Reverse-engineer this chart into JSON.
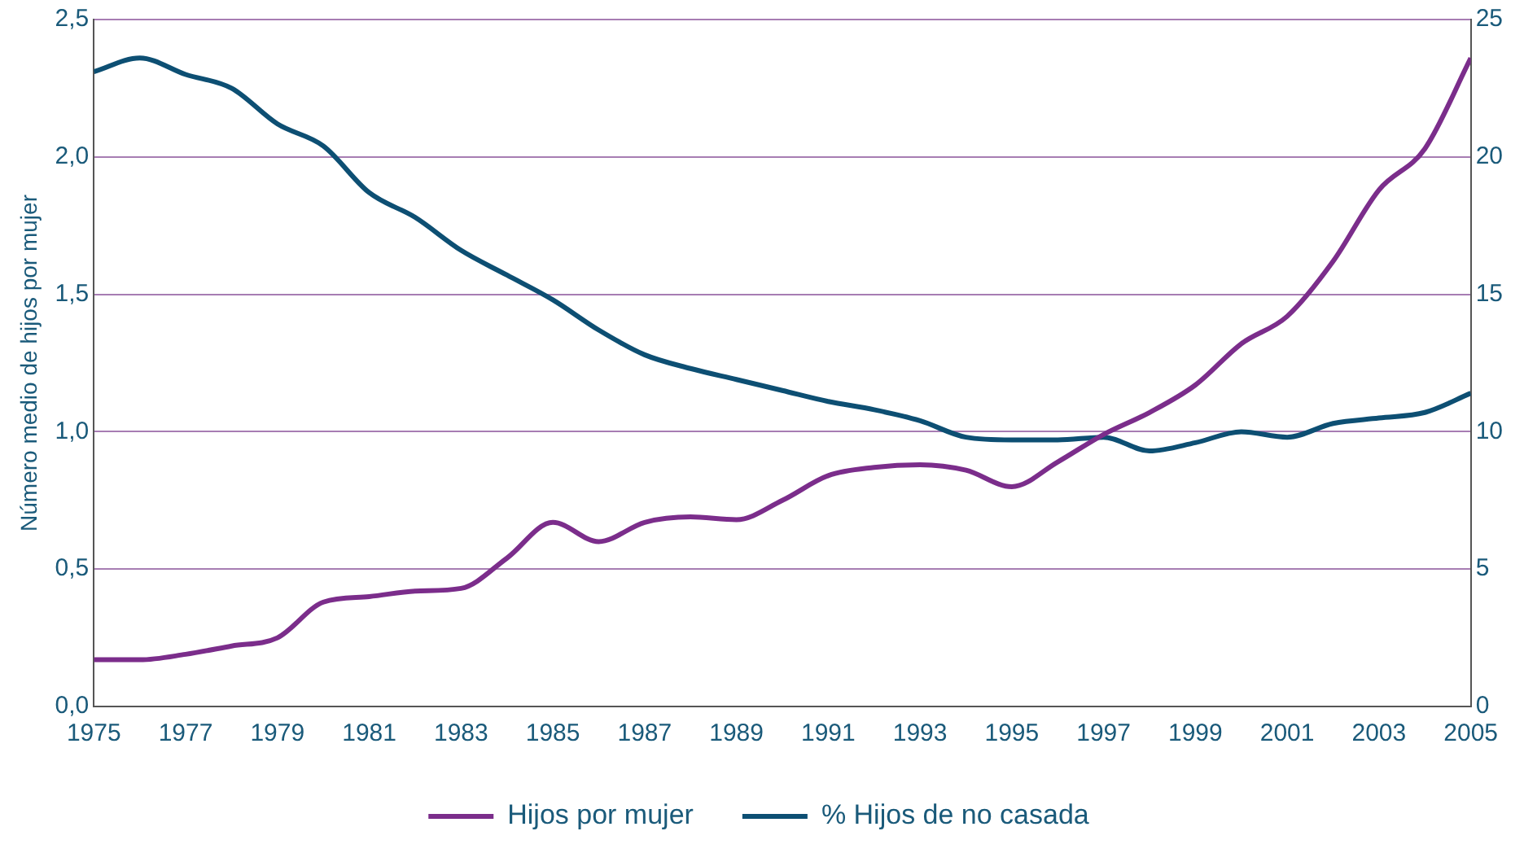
{
  "chart_data": {
    "type": "line",
    "ylabel": "Número medio de hijos por mujer",
    "x": [
      1975,
      1976,
      1977,
      1978,
      1979,
      1980,
      1981,
      1982,
      1983,
      1984,
      1985,
      1986,
      1987,
      1988,
      1989,
      1990,
      1991,
      1992,
      1993,
      1994,
      1995,
      1996,
      1997,
      1998,
      1999,
      2000,
      2001,
      2002,
      2003,
      2004,
      2005
    ],
    "series": [
      {
        "name": "Hijos por mujer",
        "color": "#7b2d8b",
        "values": [
          0.17,
          0.17,
          0.19,
          0.22,
          0.25,
          0.38,
          0.4,
          0.42,
          0.43,
          0.54,
          0.67,
          0.6,
          0.67,
          0.69,
          0.68,
          0.75,
          0.84,
          0.87,
          0.88,
          0.86,
          0.8,
          0.89,
          0.99,
          1.07,
          1.17,
          1.32,
          1.42,
          1.62,
          1.88,
          2.03,
          2.36
        ]
      },
      {
        "name": "% Hijos de no casada",
        "color": "#0d4f73",
        "axis": "y2",
        "values": [
          23.1,
          23.6,
          23.0,
          22.5,
          21.2,
          20.4,
          18.7,
          17.8,
          16.6,
          15.7,
          14.8,
          13.7,
          12.8,
          12.3,
          11.9,
          11.5,
          11.1,
          10.8,
          10.4,
          9.8,
          9.7,
          9.7,
          9.8,
          9.3,
          9.6,
          10.0,
          9.8,
          10.3,
          10.5,
          10.7,
          11.4
        ]
      }
    ],
    "xlim": [
      1975,
      2005
    ],
    "xticks": [
      1975,
      1977,
      1979,
      1981,
      1983,
      1985,
      1987,
      1989,
      1991,
      1993,
      1995,
      1997,
      1999,
      2001,
      2003,
      2005
    ],
    "ylim": [
      0,
      2.5
    ],
    "yticks": [
      {
        "value": 0,
        "label": "0,0"
      },
      {
        "value": 0.5,
        "label": "0,5"
      },
      {
        "value": 1,
        "label": "1,0"
      },
      {
        "value": 1.5,
        "label": "1,5"
      },
      {
        "value": 2,
        "label": "2,0"
      },
      {
        "value": 2.5,
        "label": "2,5"
      }
    ],
    "y2lim": [
      0,
      25
    ],
    "y2ticks": [
      0,
      5,
      10,
      15,
      20,
      25
    ],
    "grid": "y",
    "legend": "bottom",
    "line_style": "solid"
  }
}
